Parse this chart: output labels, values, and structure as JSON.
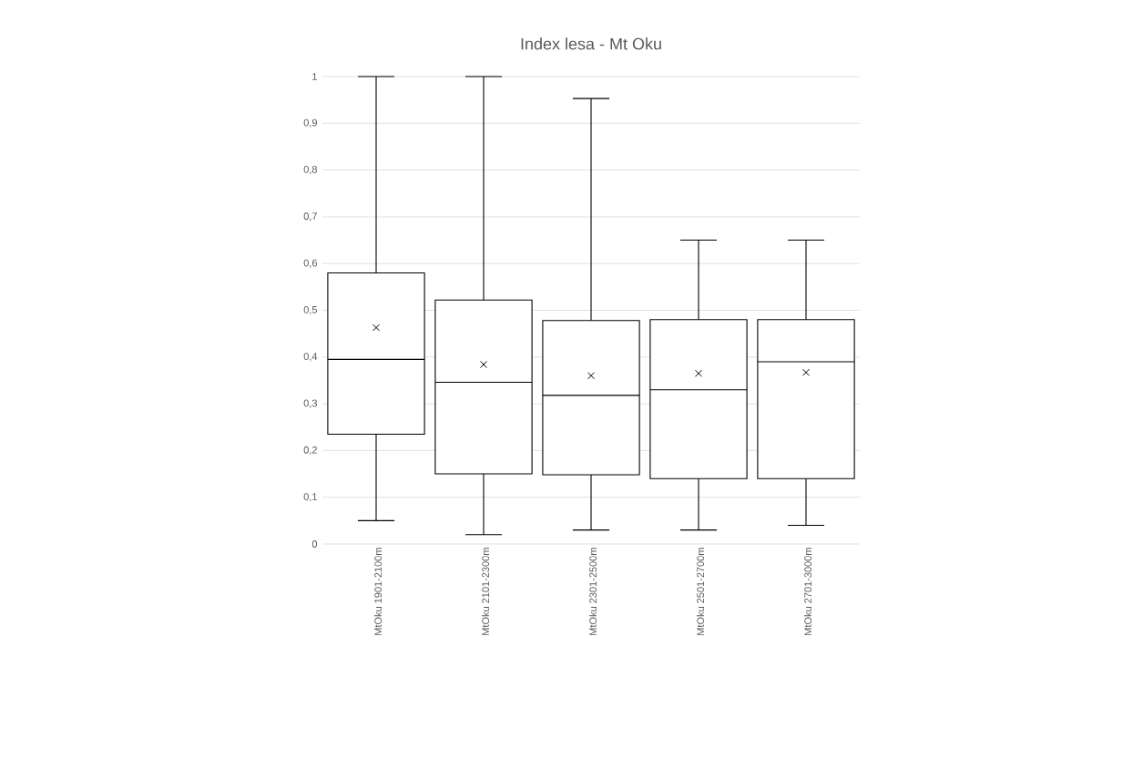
{
  "chart_data": {
    "type": "box",
    "title": "Index lesa - Mt Oku",
    "categories": [
      "MtOku 1901-2100m",
      "MtOku 2101-2300m",
      "MtOku 2301-2500m",
      "MtOku 2501-2700m",
      "MtOku 2701-3000m"
    ],
    "boxes": [
      {
        "low": 0.05,
        "q1": 0.235,
        "median": 0.395,
        "q3": 0.58,
        "high": 1,
        "mean": 0.463
      },
      {
        "low": 0.02,
        "q1": 0.15,
        "median": 0.346,
        "q3": 0.522,
        "high": 1,
        "mean": 0.384
      },
      {
        "low": 0.03,
        "q1": 0.148,
        "median": 0.318,
        "q3": 0.478,
        "high": 0.953,
        "mean": 0.36
      },
      {
        "low": 0.03,
        "q1": 0.14,
        "median": 0.33,
        "q3": 0.48,
        "high": 0.65,
        "mean": 0.365
      },
      {
        "low": 0.04,
        "q1": 0.14,
        "median": 0.39,
        "q3": 0.48,
        "high": 0.65,
        "mean": 0.367
      }
    ],
    "color": "#000000",
    "ylim": [
      0,
      1
    ],
    "yticks": [
      0,
      {
        "value": 0.1,
        "label": "0,1"
      },
      {
        "value": 0.2,
        "label": "0,2"
      },
      {
        "value": 0.3,
        "label": "0,3"
      },
      {
        "value": 0.4,
        "label": "0,4"
      },
      {
        "value": 0.5,
        "label": "0,5"
      },
      {
        "value": 0.6,
        "label": "0,6"
      },
      {
        "value": 0.7,
        "label": "0,7"
      },
      {
        "value": 0.8,
        "label": "0,8"
      },
      {
        "value": 0.9,
        "label": "0,9"
      },
      1
    ],
    "grid": "y",
    "marker": "cross"
  }
}
